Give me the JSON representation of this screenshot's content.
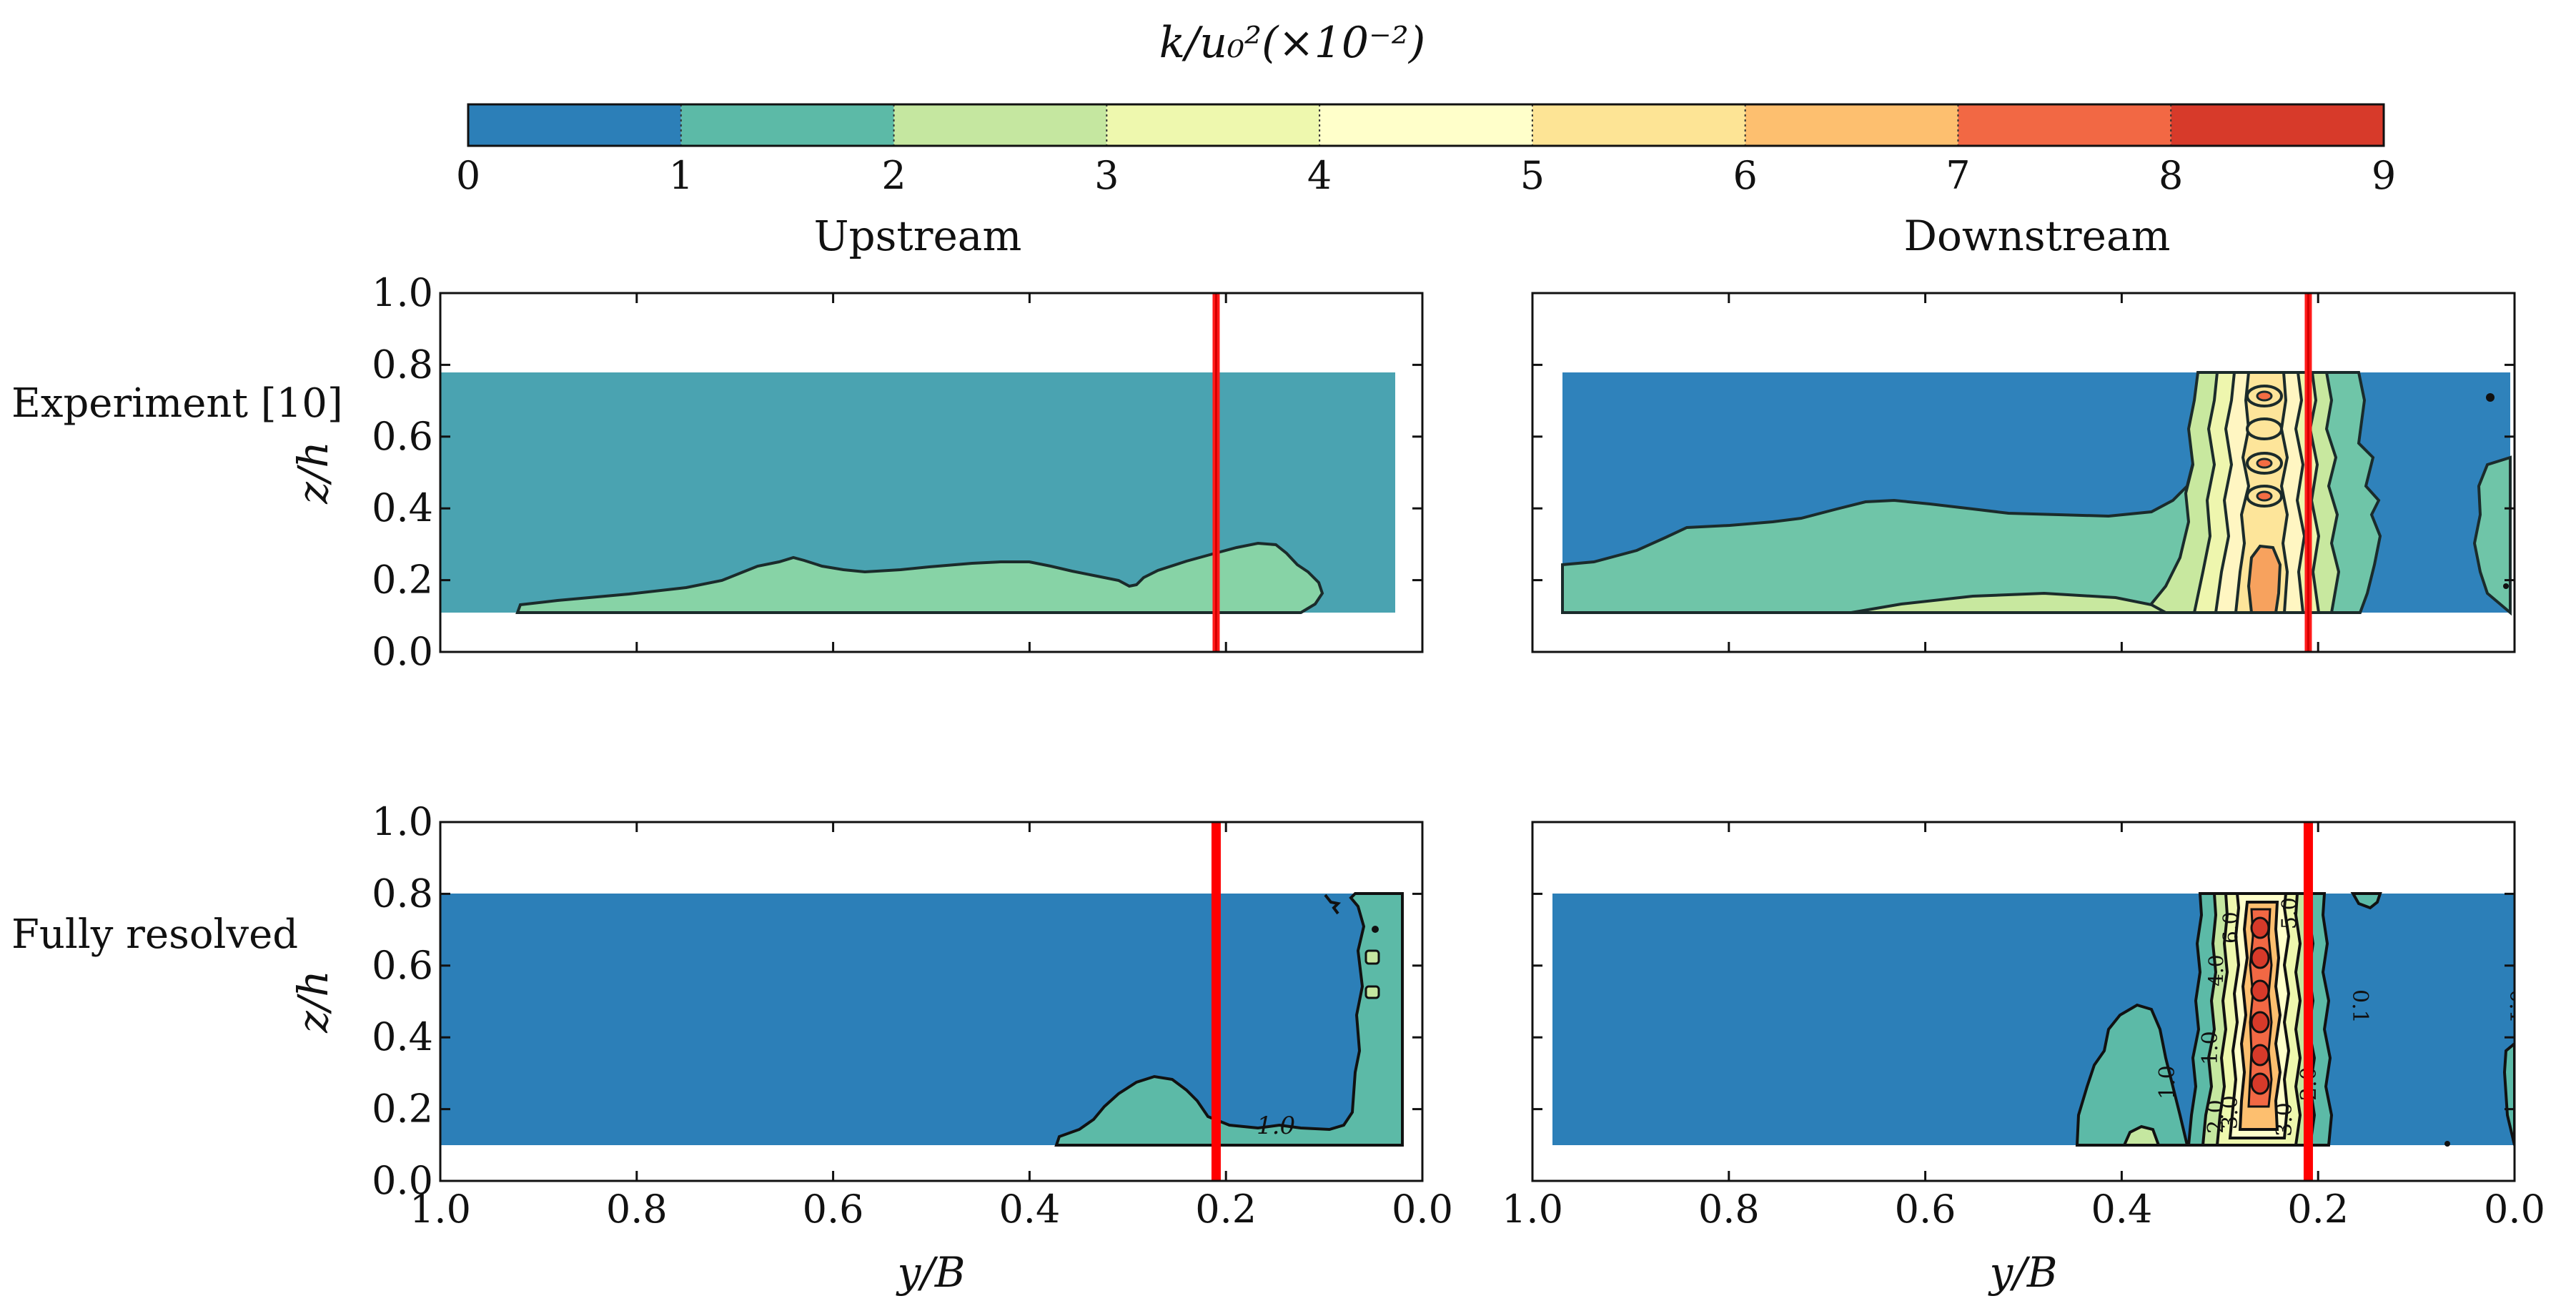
{
  "chart_data": {
    "type": "heatmap",
    "colorbar": {
      "title": "k/u₀²(×10⁻²)",
      "levels": [
        0,
        1,
        2,
        3,
        4,
        5,
        6,
        7,
        8,
        9
      ],
      "tick_labels": [
        "0",
        "1",
        "2",
        "3",
        "4",
        "5",
        "6",
        "7",
        "8",
        "9"
      ],
      "colors": [
        "#2c7fb8",
        "#5cbaa7",
        "#c5e7a0",
        "#eef8ae",
        "#ffffca",
        "#fde495",
        "#fdbf6f",
        "#f26844",
        "#d73a2a"
      ]
    },
    "column_titles": [
      "Upstream",
      "Downstream"
    ],
    "row_labels": [
      "Experiment [10]",
      "Fully resolved"
    ],
    "xlabel": "y/B",
    "ylabel": "z/h",
    "xlim": [
      1.0,
      0.0
    ],
    "ylim": [
      0.0,
      1.0
    ],
    "x_ticks": [
      "1.0",
      "0.8",
      "0.6",
      "0.4",
      "0.2",
      "0.0"
    ],
    "y_ticks": [
      "0.0",
      "0.2",
      "0.4",
      "0.6",
      "0.8",
      "1.0"
    ],
    "marker_line_y_over_B": 0.21,
    "panels": [
      {
        "row": "Experiment [10]",
        "column": "Upstream",
        "domain_y": [
          0.97,
          0.03
        ],
        "domain_z": [
          0.11,
          0.77
        ],
        "background_k": 1.0,
        "peak_k": 2.0
      },
      {
        "row": "Experiment [10]",
        "column": "Downstream",
        "domain_y": [
          0.97,
          0.03
        ],
        "domain_z": [
          0.11,
          0.77
        ],
        "background_k": 0.5,
        "peak_k": 6.5
      },
      {
        "row": "Fully resolved",
        "column": "Upstream",
        "domain_y": [
          0.98,
          0.02
        ],
        "domain_z": [
          0.1,
          0.8
        ],
        "background_k": 0.5,
        "peak_k": 1.5,
        "contour_labels": [
          "1.0"
        ]
      },
      {
        "row": "Fully resolved",
        "column": "Downstream",
        "domain_y": [
          0.98,
          0.02
        ],
        "domain_z": [
          0.1,
          0.8
        ],
        "background_k": 0.5,
        "peak_k": 8.5,
        "contour_labels": [
          "1.0",
          "1.0",
          "2.0",
          "2.0",
          "3.0",
          "3.0",
          "0.1",
          "0.1",
          "6.0",
          "5.0",
          "4.0"
        ]
      }
    ]
  }
}
